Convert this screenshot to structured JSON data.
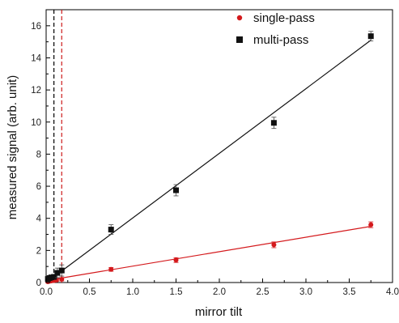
{
  "chart_data": {
    "type": "scatter",
    "xlabel": "mirror tilt",
    "ylabel": "measured signal (arb. unit)",
    "xlim": [
      0.0,
      4.0
    ],
    "ylim": [
      0,
      17
    ],
    "x_ticks": [
      "0.0",
      "0.5",
      "1.0",
      "1.5",
      "2.0",
      "2.5",
      "3.0",
      "3.5",
      "4.0"
    ],
    "y_ticks": [
      "0",
      "2",
      "4",
      "6",
      "8",
      "10",
      "12",
      "14",
      "16"
    ],
    "legend_position": "top-right",
    "grid": false,
    "vlines": [
      {
        "x": 0.09,
        "color": "#000000",
        "style": "dashed"
      },
      {
        "x": 0.18,
        "color": "#cc1a1a",
        "style": "dashed"
      }
    ],
    "series": [
      {
        "name": "single-pass",
        "color": "#d4191c",
        "marker": "circle",
        "x": [
          0.02,
          0.04,
          0.06,
          0.09,
          0.12,
          0.18,
          0.75,
          1.5,
          2.63,
          3.75
        ],
        "y": [
          0.05,
          0.08,
          0.1,
          0.12,
          0.15,
          0.2,
          0.82,
          1.4,
          2.35,
          3.6
        ],
        "err": [
          0.08,
          0.08,
          0.08,
          0.08,
          0.08,
          0.1,
          0.12,
          0.15,
          0.18,
          0.18
        ],
        "fit": {
          "x": [
            0.0,
            3.75
          ],
          "y": [
            0.12,
            3.5
          ]
        }
      },
      {
        "name": "multi-pass",
        "color": "#111111",
        "marker": "square",
        "x": [
          0.02,
          0.04,
          0.06,
          0.09,
          0.13,
          0.18,
          0.75,
          1.5,
          2.63,
          3.75
        ],
        "y": [
          0.22,
          0.28,
          0.32,
          0.35,
          0.6,
          0.75,
          3.3,
          5.75,
          9.95,
          15.35
        ],
        "err": [
          0.1,
          0.1,
          0.1,
          0.15,
          0.3,
          0.35,
          0.3,
          0.35,
          0.35,
          0.3
        ],
        "fit": {
          "x": [
            0.18,
            3.75
          ],
          "y": [
            0.72,
            15.1
          ]
        }
      }
    ]
  }
}
